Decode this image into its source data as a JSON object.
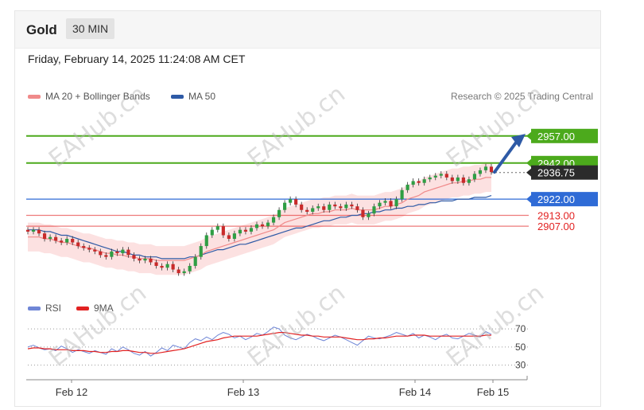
{
  "header": {
    "symbol": "Gold",
    "timeframe": "30 MIN"
  },
  "timestamp": "Friday, February 14, 2025 11:24:08 AM CET",
  "credit": "Research © 2025 Trading Central",
  "legend": {
    "ma20": {
      "label": "MA 20 + Bollinger Bands",
      "color": "#f08a8a"
    },
    "ma50": {
      "label": "MA 50",
      "color": "#2e5aa6"
    }
  },
  "rsi_legend": {
    "rsi": {
      "label": "RSI",
      "color": "#6f86d6"
    },
    "ma": {
      "label": "9MA",
      "color": "#e22222"
    }
  },
  "watermark": "EAHub.cn",
  "chart_data": [
    {
      "type": "line",
      "title": "Gold",
      "ylim": [
        2870,
        2975
      ],
      "x_ticks": [
        "Feb 12",
        "Feb 13",
        "Feb 14",
        "Feb 15"
      ],
      "price_level_labels": [
        {
          "value": 2957.0,
          "label": "2957.00",
          "color": "#4caa1c",
          "style": "resistance"
        },
        {
          "value": 2942.0,
          "label": "2942.00",
          "color": "#4caa1c",
          "style": "resistance"
        },
        {
          "value": 2936.75,
          "label": "2936.75",
          "color": "#2b2b2b",
          "style": "last-price"
        },
        {
          "value": 2922.0,
          "label": "2922.00",
          "color": "#2f6bd6",
          "style": "pivot"
        },
        {
          "value": 2913.0,
          "label": "2913.00",
          "color": "#e22222",
          "style": "support"
        },
        {
          "value": 2907.0,
          "label": "2907.00",
          "color": "#e22222",
          "style": "support"
        }
      ],
      "series": [
        {
          "name": "Price",
          "values": [
            2904,
            2905,
            2903,
            2900,
            2901,
            2899,
            2898,
            2900,
            2898,
            2896,
            2895,
            2894,
            2893,
            2891,
            2890,
            2893,
            2892,
            2894,
            2891,
            2889,
            2888,
            2889,
            2887,
            2885,
            2884,
            2886,
            2883,
            2881,
            2882,
            2885,
            2890,
            2896,
            2902,
            2905,
            2907,
            2902,
            2900,
            2903,
            2905,
            2904,
            2906,
            2908,
            2907,
            2909,
            2912,
            2916,
            2920,
            2922,
            2919,
            2916,
            2915,
            2917,
            2918,
            2916,
            2919,
            2918,
            2917,
            2919,
            2918,
            2916,
            2912,
            2914,
            2918,
            2920,
            2921,
            2918,
            2922,
            2927,
            2930,
            2932,
            2931,
            2933,
            2934,
            2935,
            2936,
            2934,
            2932,
            2934,
            2931,
            2933,
            2936,
            2938,
            2940,
            2937
          ]
        },
        {
          "name": "MA 20",
          "values": [
            2901,
            2901,
            2901,
            2900,
            2900,
            2899,
            2898,
            2898,
            2897,
            2896,
            2895,
            2895,
            2894,
            2893,
            2892,
            2892,
            2891,
            2891,
            2890,
            2890,
            2889,
            2889,
            2889,
            2888,
            2888,
            2888,
            2888,
            2888,
            2888,
            2889,
            2890,
            2891,
            2893,
            2894,
            2895,
            2896,
            2897,
            2898,
            2899,
            2900,
            2901,
            2902,
            2903,
            2904,
            2905,
            2907,
            2909,
            2910,
            2911,
            2912,
            2913,
            2914,
            2914,
            2915,
            2915,
            2916,
            2916,
            2916,
            2917,
            2916,
            2916,
            2916,
            2916,
            2917,
            2918,
            2918,
            2919,
            2920,
            2922,
            2923,
            2924,
            2926,
            2927,
            2928,
            2929,
            2930,
            2931,
            2931,
            2932,
            2932,
            2933,
            2933,
            2934,
            2934
          ]
        },
        {
          "name": "MA 50",
          "values": [
            2905,
            2905,
            2905,
            2904,
            2904,
            2903,
            2902,
            2902,
            2901,
            2900,
            2899,
            2898,
            2897,
            2896,
            2895,
            2894,
            2893,
            2893,
            2892,
            2891,
            2891,
            2890,
            2890,
            2890,
            2889,
            2889,
            2889,
            2889,
            2889,
            2890,
            2890,
            2891,
            2892,
            2893,
            2894,
            2894,
            2895,
            2896,
            2897,
            2897,
            2898,
            2899,
            2900,
            2901,
            2902,
            2903,
            2904,
            2905,
            2906,
            2906,
            2907,
            2908,
            2909,
            2910,
            2910,
            2911,
            2912,
            2912,
            2913,
            2913,
            2914,
            2914,
            2915,
            2915,
            2916,
            2916,
            2917,
            2917,
            2918,
            2918,
            2919,
            2919,
            2920,
            2920,
            2921,
            2921,
            2921,
            2922,
            2922,
            2922,
            2923,
            2923,
            2923,
            2924
          ]
        }
      ]
    },
    {
      "type": "line",
      "title": "RSI",
      "ylim": [
        20,
        85
      ],
      "y_ticks": [
        70,
        50,
        30
      ],
      "series": [
        {
          "name": "RSI",
          "values": [
            50,
            52,
            49,
            47,
            48,
            46,
            51,
            48,
            44,
            47,
            45,
            43,
            46,
            44,
            42,
            48,
            45,
            50,
            47,
            43,
            41,
            45,
            40,
            44,
            49,
            46,
            52,
            50,
            48,
            55,
            59,
            57,
            61,
            58,
            63,
            66,
            64,
            60,
            62,
            58,
            61,
            65,
            63,
            67,
            72,
            70,
            63,
            60,
            58,
            61,
            64,
            62,
            59,
            57,
            60,
            63,
            61,
            58,
            55,
            52,
            57,
            62,
            60,
            59,
            61,
            63,
            66,
            64,
            62,
            65,
            60,
            63,
            61,
            58,
            62,
            64,
            60,
            59,
            62,
            65,
            63,
            61,
            67,
            64
          ]
        },
        {
          "name": "9MA",
          "values": [
            48,
            49,
            49,
            48,
            48,
            47,
            47,
            47,
            46,
            46,
            46,
            45,
            45,
            44,
            44,
            45,
            45,
            46,
            46,
            45,
            44,
            44,
            43,
            43,
            44,
            45,
            46,
            47,
            48,
            50,
            52,
            54,
            56,
            57,
            58,
            60,
            61,
            62,
            62,
            62,
            62,
            62,
            63,
            64,
            65,
            66,
            66,
            65,
            64,
            63,
            63,
            62,
            62,
            61,
            61,
            61,
            61,
            60,
            59,
            58,
            58,
            59,
            59,
            60,
            60,
            61,
            62,
            62,
            62,
            63,
            63,
            63,
            62,
            62,
            62,
            62,
            62,
            62,
            62,
            62,
            62,
            62,
            63,
            63
          ]
        }
      ]
    }
  ]
}
